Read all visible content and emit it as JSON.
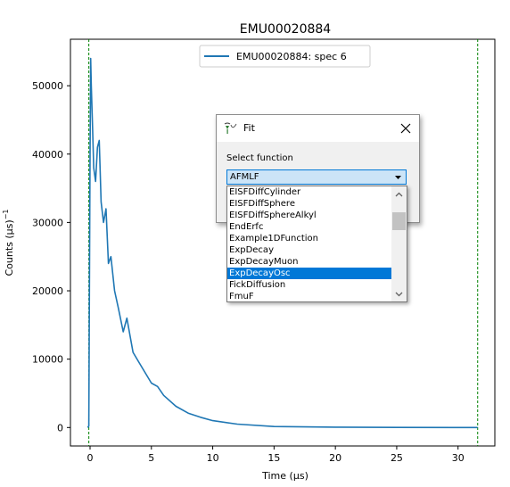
{
  "plot": {
    "title": "EMU00020884",
    "xlabel": "Time ($\\mu s$)",
    "xlabel_display": "Time (μs)",
    "ylabel_display": "Counts (μs)",
    "ylabel_exponent": "−1",
    "legend_label": "EMU00020884: spec 6",
    "series_color": "#1f77b4",
    "range_line_color": "#008000"
  },
  "chart_data": {
    "type": "line",
    "title": "EMU00020884",
    "xlabel": "Time (μs)",
    "ylabel": "Counts (μs)^-1",
    "xlim": [
      -1.6,
      33.0
    ],
    "ylim": [
      -2700,
      56800
    ],
    "x_ticks": [
      0,
      5,
      10,
      15,
      20,
      25,
      30
    ],
    "y_ticks": [
      0,
      10000,
      20000,
      30000,
      40000,
      50000
    ],
    "x_tick_labels": [
      "0",
      "5",
      "10",
      "15",
      "20",
      "25",
      "30"
    ],
    "y_tick_labels": [
      "0",
      "10000",
      "20000",
      "30000",
      "40000",
      "50000"
    ],
    "legend_position": "upper-center",
    "grid": false,
    "vertical_lines": [
      -0.1,
      31.6
    ],
    "series": [
      {
        "name": "EMU00020884: spec 6",
        "x": [
          -0.2,
          -0.1,
          0.0,
          0.05,
          0.1,
          0.2,
          0.3,
          0.45,
          0.6,
          0.75,
          0.9,
          1.1,
          1.3,
          1.5,
          1.7,
          2.0,
          2.3,
          2.7,
          3.0,
          3.5,
          4.0,
          4.5,
          5.0,
          5.5,
          6.0,
          7.0,
          8.0,
          9.0,
          10.0,
          12.0,
          15.0,
          20.0,
          25.0,
          31.6
        ],
        "y": [
          0,
          200,
          40000,
          54000,
          50000,
          44000,
          38000,
          36000,
          41000,
          42000,
          33000,
          30000,
          32000,
          24000,
          25000,
          20000,
          17500,
          14000,
          16000,
          11000,
          9500,
          8000,
          6500,
          6000,
          4700,
          3100,
          2100,
          1500,
          1000,
          500,
          150,
          50,
          20,
          0
        ]
      }
    ]
  },
  "dialog": {
    "title": "Fit",
    "select_label": "Select function",
    "selected_value": "AFMLF",
    "options": [
      "EISFDiffCylinder",
      "EISFDiffSphere",
      "EISFDiffSphereAlkyl",
      "EndErfc",
      "Example1DFunction",
      "ExpDecay",
      "ExpDecayMuon",
      "ExpDecayOsc",
      "FickDiffusion",
      "FmuF"
    ],
    "highlighted_option": "ExpDecayOsc"
  }
}
